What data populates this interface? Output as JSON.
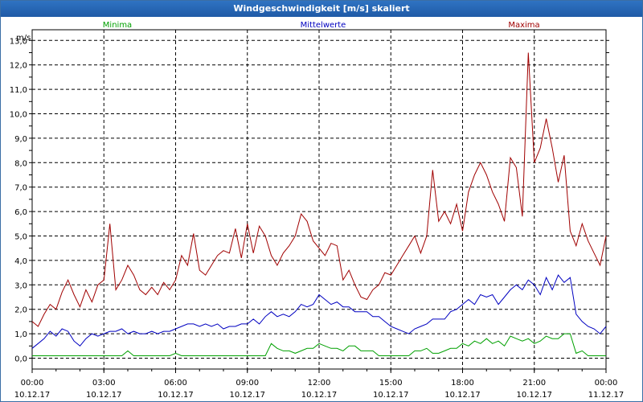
{
  "window": {
    "title": "Windgeschwindigkeit [m/s] skaliert"
  },
  "chart_data": {
    "type": "line",
    "title": "Windgeschwindigkeit [m/s] skaliert",
    "ylabel": "m/s",
    "ylim": [
      -0.5,
      13.5
    ],
    "yticks": [
      "0,0",
      "0,5",
      "1,0",
      "1,5",
      "2,0",
      "2,5",
      "3,0",
      "3,5",
      "4,0",
      "4,5",
      "5,0",
      "5,5",
      "6,0",
      "6,5",
      "7,0",
      "7,5",
      "8,0",
      "8,5",
      "9,0",
      "9,5",
      "10,0",
      "10,5",
      "11,0",
      "11,5",
      "12,0",
      "12,5",
      "13,0"
    ],
    "xticks": [
      {
        "time": "00:00",
        "date": "10.12.17"
      },
      {
        "time": "03:00",
        "date": "10.12.17"
      },
      {
        "time": "06:00",
        "date": "10.12.17"
      },
      {
        "time": "09:00",
        "date": "10.12.17"
      },
      {
        "time": "12:00",
        "date": "10.12.17"
      },
      {
        "time": "15:00",
        "date": "10.12.17"
      },
      {
        "time": "18:00",
        "date": "10.12.17"
      },
      {
        "time": "21:00",
        "date": "10.12.17"
      },
      {
        "time": "00:00",
        "date": "11.12.17"
      }
    ],
    "x_hours": [
      0,
      0.25,
      0.5,
      0.75,
      1,
      1.25,
      1.5,
      1.75,
      2,
      2.25,
      2.5,
      2.75,
      3,
      3.25,
      3.5,
      3.75,
      4,
      4.25,
      4.5,
      4.75,
      5,
      5.25,
      5.5,
      5.75,
      6,
      6.25,
      6.5,
      6.75,
      7,
      7.25,
      7.5,
      7.75,
      8,
      8.25,
      8.5,
      8.75,
      9,
      9.25,
      9.5,
      9.75,
      10,
      10.25,
      10.5,
      10.75,
      11,
      11.25,
      11.5,
      11.75,
      12,
      12.25,
      12.5,
      12.75,
      13,
      13.25,
      13.5,
      13.75,
      14,
      14.25,
      14.5,
      14.75,
      15,
      15.25,
      15.5,
      15.75,
      16,
      16.25,
      16.5,
      16.75,
      17,
      17.25,
      17.5,
      17.75,
      18,
      18.25,
      18.5,
      18.75,
      19,
      19.25,
      19.5,
      19.75,
      20,
      20.25,
      20.5,
      20.75,
      21,
      21.25,
      21.5,
      21.75,
      22,
      22.25,
      22.5,
      22.75,
      23,
      23.25,
      23.5,
      23.75,
      24
    ],
    "series": [
      {
        "name": "Minima",
        "color": "#00a000",
        "values": [
          0.1,
          0.1,
          0.1,
          0.1,
          0.1,
          0.1,
          0.1,
          0.1,
          0.1,
          0.1,
          0.1,
          0.1,
          0.1,
          0.1,
          0.1,
          0.1,
          0.3,
          0.1,
          0.1,
          0.1,
          0.1,
          0.1,
          0.1,
          0.1,
          0.2,
          0.1,
          0.1,
          0.1,
          0.1,
          0.1,
          0.1,
          0.1,
          0.1,
          0.1,
          0.1,
          0.1,
          0.1,
          0.1,
          0.1,
          0.1,
          0.6,
          0.4,
          0.3,
          0.3,
          0.2,
          0.3,
          0.4,
          0.4,
          0.6,
          0.5,
          0.4,
          0.4,
          0.3,
          0.5,
          0.5,
          0.3,
          0.3,
          0.3,
          0.1,
          0.1,
          0.1,
          0.1,
          0.1,
          0.1,
          0.3,
          0.3,
          0.4,
          0.2,
          0.2,
          0.3,
          0.4,
          0.4,
          0.6,
          0.5,
          0.7,
          0.6,
          0.8,
          0.6,
          0.7,
          0.5,
          0.9,
          0.8,
          0.7,
          0.8,
          0.6,
          0.7,
          0.9,
          0.8,
          0.8,
          1.0,
          1.0,
          0.2,
          0.3,
          0.1,
          0.1,
          0.1,
          0.1
        ]
      },
      {
        "name": "Mittelwerte",
        "color": "#0000c0",
        "values": [
          0.4,
          0.6,
          0.8,
          1.1,
          0.9,
          1.2,
          1.1,
          0.7,
          0.5,
          0.8,
          1.0,
          0.9,
          1.0,
          1.1,
          1.1,
          1.2,
          1.0,
          1.1,
          1.0,
          1.0,
          1.1,
          1.0,
          1.1,
          1.1,
          1.2,
          1.3,
          1.4,
          1.4,
          1.3,
          1.4,
          1.3,
          1.4,
          1.2,
          1.3,
          1.3,
          1.4,
          1.4,
          1.6,
          1.4,
          1.7,
          1.9,
          1.7,
          1.8,
          1.7,
          1.9,
          2.2,
          2.1,
          2.2,
          2.6,
          2.4,
          2.2,
          2.3,
          2.1,
          2.1,
          1.9,
          1.9,
          1.9,
          1.7,
          1.7,
          1.5,
          1.3,
          1.2,
          1.1,
          1.0,
          1.2,
          1.3,
          1.4,
          1.6,
          1.6,
          1.6,
          1.9,
          2.0,
          2.2,
          2.4,
          2.2,
          2.6,
          2.5,
          2.6,
          2.2,
          2.5,
          2.8,
          3.0,
          2.8,
          3.2,
          3.0,
          2.6,
          3.3,
          2.8,
          3.4,
          3.1,
          3.3,
          1.8,
          1.5,
          1.3,
          1.2,
          1.0,
          1.3
        ]
      },
      {
        "name": "Maxima",
        "color": "#a00000",
        "values": [
          1.5,
          1.3,
          1.8,
          2.2,
          2.0,
          2.7,
          3.2,
          2.6,
          2.1,
          2.8,
          2.3,
          3.0,
          3.2,
          5.5,
          2.8,
          3.2,
          3.8,
          3.4,
          2.8,
          2.6,
          2.9,
          2.6,
          3.1,
          2.8,
          3.2,
          4.2,
          3.8,
          5.1,
          3.6,
          3.4,
          3.8,
          4.2,
          4.4,
          4.3,
          5.3,
          4.1,
          5.5,
          4.3,
          5.4,
          5.0,
          4.2,
          3.8,
          4.3,
          4.6,
          5.0,
          5.9,
          5.6,
          4.8,
          4.5,
          4.2,
          4.7,
          4.6,
          3.2,
          3.6,
          3.0,
          2.5,
          2.4,
          2.8,
          3.0,
          3.5,
          3.4,
          3.8,
          4.2,
          4.6,
          5.0,
          4.3,
          5.0,
          7.7,
          5.6,
          6.0,
          5.5,
          6.3,
          5.2,
          6.8,
          7.5,
          8.0,
          7.5,
          6.8,
          6.3,
          5.6,
          8.2,
          7.8,
          5.8,
          12.5,
          8.0,
          8.6,
          9.8,
          8.6,
          7.2,
          8.3,
          5.2,
          4.6,
          5.5,
          4.8,
          4.3,
          3.8,
          5.0
        ]
      }
    ]
  }
}
